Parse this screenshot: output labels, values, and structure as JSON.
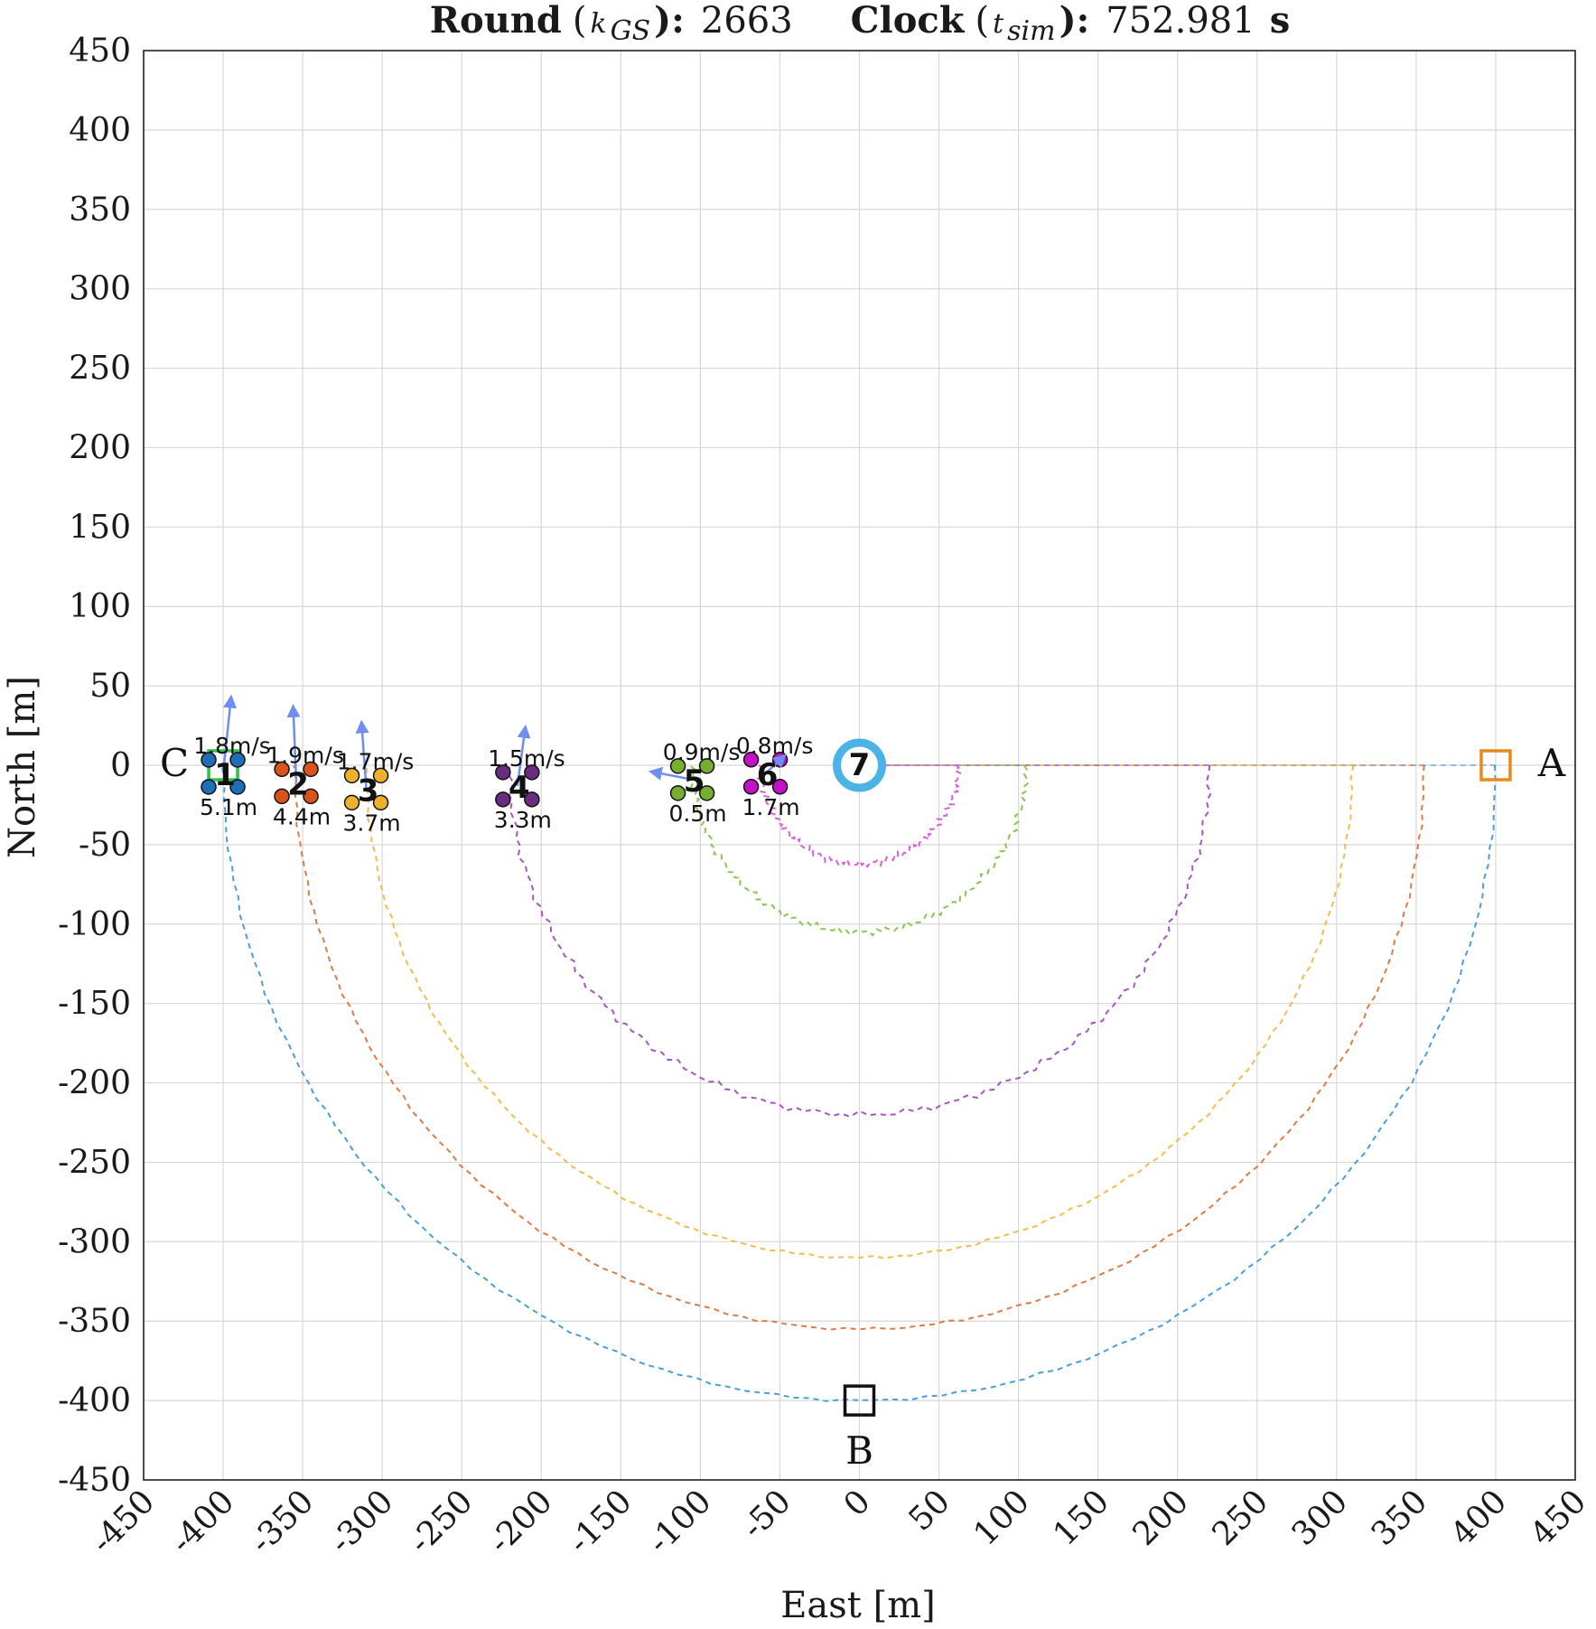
{
  "title": {
    "round_label": "Round",
    "round_sym_open": "(",
    "round_sym_k": "k",
    "round_sym_sub": "GS",
    "round_sym_close": "):",
    "round_value": "2663",
    "clock_label": "Clock",
    "clock_sym_open": "(",
    "clock_sym_t": "t",
    "clock_sym_sub": "sim",
    "clock_sym_close": "):",
    "clock_value": "752.981",
    "clock_unit": "s"
  },
  "chart_data": {
    "type": "scatter",
    "xlabel": "East [m]",
    "ylabel": "North [m]",
    "xlim": [
      -450,
      450
    ],
    "ylim": [
      -450,
      450
    ],
    "xticks": [
      -450,
      -400,
      -350,
      -300,
      -250,
      -200,
      -150,
      -100,
      -50,
      0,
      50,
      100,
      150,
      200,
      250,
      300,
      350,
      400,
      450
    ],
    "yticks": [
      450,
      400,
      350,
      300,
      250,
      200,
      150,
      100,
      50,
      0,
      -50,
      -100,
      -150,
      -200,
      -250,
      -300,
      -350,
      -400,
      -450
    ],
    "grid": true,
    "waypoints": [
      {
        "label": "A",
        "x": 400,
        "y": 0,
        "color": "#e8891c"
      },
      {
        "label": "B",
        "x": 0,
        "y": -400,
        "color": "#111111"
      },
      {
        "label": "C",
        "x": -400,
        "y": 0,
        "color": "#2ec24a"
      }
    ],
    "trajectories": [
      {
        "id": 1,
        "color": "#4a9fd8",
        "radius": 400
      },
      {
        "id": 2,
        "color": "#e07a45",
        "radius": 355
      },
      {
        "id": 3,
        "color": "#f2bc4e",
        "radius": 310
      },
      {
        "id": 4,
        "color": "#a855c2",
        "radius": 220
      },
      {
        "id": 5,
        "color": "#8dc453",
        "radius": 105
      },
      {
        "id": 6,
        "color": "#d85fd6",
        "radius": 62
      }
    ],
    "agents": [
      {
        "id": "1",
        "x": -400,
        "y": -5.1,
        "color": "#1f6fb8",
        "speed": "1.8m/s",
        "error": "5.1m",
        "vx": 5,
        "vy": 48
      },
      {
        "id": "2",
        "x": -354,
        "y": -11,
        "color": "#d9531e",
        "speed": "1.9m/s",
        "error": "4.4m",
        "vx": -2,
        "vy": 48
      },
      {
        "id": "3",
        "x": -310,
        "y": -15,
        "color": "#eeb12b",
        "speed": "1.7m/s",
        "error": "3.7m",
        "vx": -3,
        "vy": 42
      },
      {
        "id": "4",
        "x": -215,
        "y": -13,
        "color": "#6a2c80",
        "speed": "1.5m/s",
        "error": "3.3m",
        "vx": 5,
        "vy": 37
      },
      {
        "id": "5",
        "x": -105,
        "y": -9,
        "color": "#77ad30",
        "speed": "0.9m/s",
        "error": "0.5m",
        "vx": -26,
        "vy": 5
      },
      {
        "id": "6",
        "x": -59,
        "y": -5,
        "color": "#c410c6",
        "speed": "0.8m/s",
        "error": "1.7m",
        "vx": 12,
        "vy": 11
      },
      {
        "id": "7",
        "x": 0,
        "y": 0,
        "color": "#4bb3e6",
        "speed": "",
        "error": "",
        "vx": 0,
        "vy": 0
      }
    ]
  }
}
